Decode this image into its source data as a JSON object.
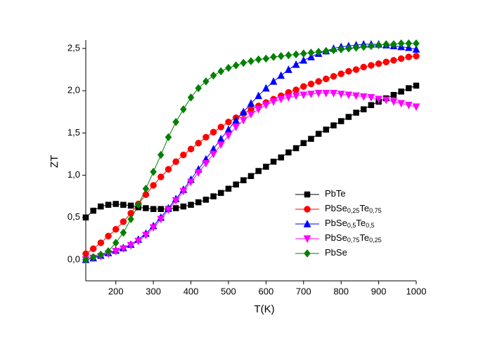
{
  "chart_data": {
    "type": "line",
    "x_label": "T(K)",
    "y_label": "ZT",
    "xlim": [
      120,
      1000
    ],
    "ylim": [
      -0.25,
      2.6
    ],
    "xticks": [
      200,
      300,
      400,
      500,
      600,
      700,
      800,
      900,
      1000
    ],
    "yticks": [
      {
        "value": 0,
        "label": "0,0"
      },
      {
        "value": 0.5,
        "label": "0,5"
      },
      {
        "value": 1,
        "label": "1,0"
      },
      {
        "value": 1.5,
        "label": "1,5"
      },
      {
        "value": 2,
        "label": "2,0"
      },
      {
        "value": 2.5,
        "label": "2,5"
      }
    ],
    "x": [
      120,
      140,
      160,
      180,
      200,
      220,
      240,
      260,
      280,
      300,
      320,
      340,
      360,
      380,
      400,
      420,
      440,
      460,
      480,
      500,
      520,
      540,
      560,
      580,
      600,
      620,
      640,
      660,
      680,
      700,
      720,
      740,
      760,
      780,
      800,
      820,
      840,
      860,
      880,
      900,
      920,
      940,
      960,
      980,
      1000
    ],
    "series": [
      {
        "name": "PbTe",
        "color": "#000000",
        "marker": "square",
        "values": [
          0.5,
          0.58,
          0.63,
          0.65,
          0.66,
          0.65,
          0.64,
          0.62,
          0.61,
          0.6,
          0.6,
          0.6,
          0.61,
          0.63,
          0.65,
          0.68,
          0.71,
          0.75,
          0.79,
          0.84,
          0.89,
          0.94,
          0.99,
          1.05,
          1.1,
          1.16,
          1.21,
          1.27,
          1.32,
          1.38,
          1.43,
          1.49,
          1.54,
          1.59,
          1.64,
          1.69,
          1.74,
          1.78,
          1.83,
          1.87,
          1.91,
          1.95,
          1.99,
          2.03,
          2.06
        ]
      },
      {
        "name": "PbSe0,25Te0,75",
        "color": "#ff0000",
        "marker": "circle",
        "values": [
          0.07,
          0.13,
          0.2,
          0.28,
          0.36,
          0.45,
          0.55,
          0.66,
          0.77,
          0.88,
          0.98,
          1.07,
          1.16,
          1.24,
          1.31,
          1.38,
          1.45,
          1.51,
          1.57,
          1.63,
          1.68,
          1.73,
          1.78,
          1.82,
          1.86,
          1.9,
          1.94,
          1.98,
          2.01,
          2.05,
          2.08,
          2.11,
          2.14,
          2.17,
          2.2,
          2.23,
          2.25,
          2.28,
          2.3,
          2.32,
          2.34,
          2.36,
          2.38,
          2.4,
          2.41
        ]
      },
      {
        "name": "PbSe0,5Te0,5",
        "color": "#0000ff",
        "marker": "triangle-up",
        "values": [
          0.0,
          0.02,
          0.05,
          0.08,
          0.11,
          0.14,
          0.18,
          0.24,
          0.31,
          0.4,
          0.5,
          0.61,
          0.72,
          0.83,
          0.95,
          1.07,
          1.19,
          1.31,
          1.43,
          1.54,
          1.65,
          1.75,
          1.85,
          1.94,
          2.03,
          2.11,
          2.18,
          2.25,
          2.31,
          2.36,
          2.4,
          2.44,
          2.47,
          2.5,
          2.52,
          2.53,
          2.54,
          2.55,
          2.55,
          2.55,
          2.54,
          2.53,
          2.52,
          2.51,
          2.49
        ]
      },
      {
        "name": "PbSe0,75Te0,25",
        "color": "#ff00ff",
        "marker": "triangle-down",
        "values": [
          0.0,
          0.02,
          0.04,
          0.07,
          0.1,
          0.13,
          0.17,
          0.22,
          0.29,
          0.38,
          0.48,
          0.59,
          0.7,
          0.81,
          0.92,
          1.03,
          1.14,
          1.25,
          1.36,
          1.47,
          1.57,
          1.65,
          1.72,
          1.78,
          1.83,
          1.87,
          1.9,
          1.92,
          1.94,
          1.95,
          1.96,
          1.97,
          1.97,
          1.97,
          1.96,
          1.95,
          1.94,
          1.93,
          1.92,
          1.9,
          1.89,
          1.87,
          1.85,
          1.83,
          1.81
        ]
      },
      {
        "name": "PbSe",
        "color": "#008000",
        "marker": "diamond",
        "values": [
          0.0,
          0.03,
          0.06,
          0.1,
          0.2,
          0.32,
          0.48,
          0.65,
          0.84,
          1.04,
          1.24,
          1.45,
          1.63,
          1.78,
          1.92,
          2.03,
          2.11,
          2.18,
          2.23,
          2.27,
          2.3,
          2.33,
          2.35,
          2.37,
          2.38,
          2.4,
          2.41,
          2.42,
          2.43,
          2.44,
          2.45,
          2.46,
          2.47,
          2.48,
          2.49,
          2.5,
          2.51,
          2.52,
          2.53,
          2.54,
          2.55,
          2.55,
          2.56,
          2.56,
          2.56
        ]
      }
    ]
  }
}
